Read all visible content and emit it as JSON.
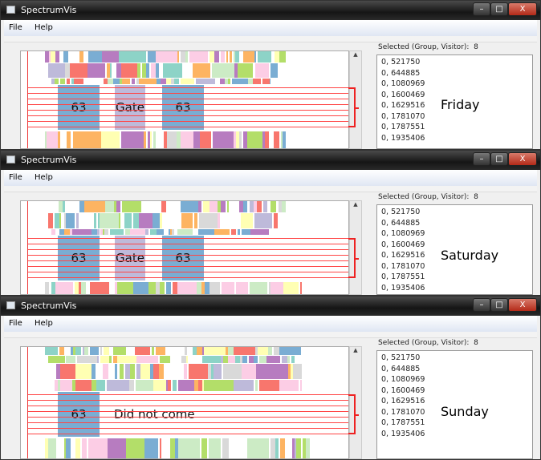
{
  "app_title": "SpectrumVis",
  "menu": [
    "File",
    "Help"
  ],
  "window_controls": {
    "min": "–",
    "max": "□",
    "close": "X"
  },
  "selected_label": "Selected (Group, Visitor):",
  "selected_count": "8",
  "visitors": [
    "0, 521750",
    "0, 644885",
    "0, 1080969",
    "0, 1600469",
    "0, 1629516",
    "0, 1781070",
    "0, 1787551",
    "0, 1935406"
  ],
  "palette": [
    "#f8766d",
    "#b77cc0",
    "#7aadd3",
    "#fdb462",
    "#8dd3c7",
    "#b3de69",
    "#ccebc5",
    "#ffffb3",
    "#d9d9d9",
    "#fccde5",
    "#bebada"
  ],
  "panels": [
    {
      "day": "Friday",
      "tiles": [
        {
          "label": "63",
          "color": "#7aadd3"
        },
        {
          "label": "Gate",
          "color": "#bebada"
        },
        {
          "label": "63",
          "color": "#7aadd3"
        }
      ],
      "note": ""
    },
    {
      "day": "Saturday",
      "tiles": [
        {
          "label": "63",
          "color": "#7aadd3"
        },
        {
          "label": "Gate",
          "color": "#bebada"
        },
        {
          "label": "63",
          "color": "#7aadd3"
        }
      ],
      "note": ""
    },
    {
      "day": "Sunday",
      "tiles": [
        {
          "label": "63",
          "color": "#7aadd3"
        }
      ],
      "note": "Did not come"
    }
  ]
}
